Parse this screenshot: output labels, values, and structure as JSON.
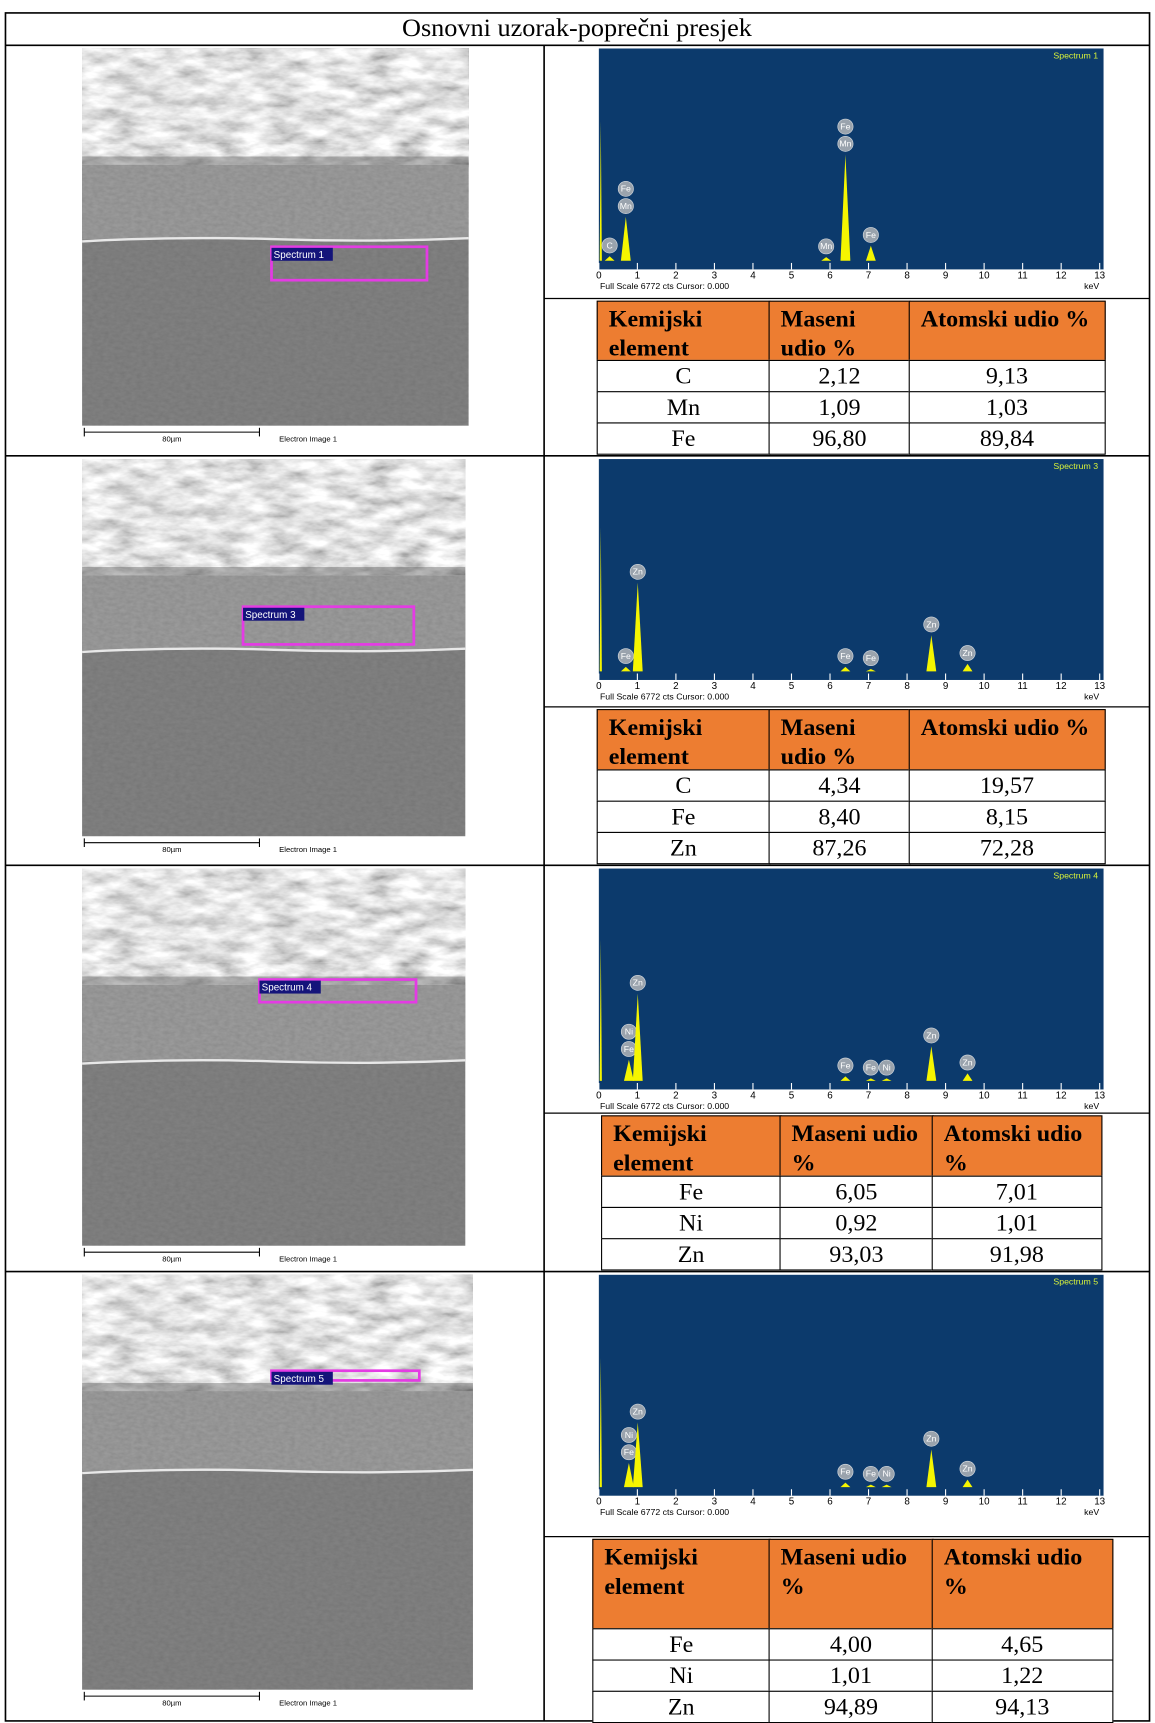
{
  "title": "Osnovni uzorak-poprečni presjek",
  "sections": [
    {
      "image": {
        "spectrum_label": "Spectrum 1",
        "scale_bar": "80µm",
        "caption": "Electron Image 1"
      },
      "spectrum": {
        "title": "Spectrum 1",
        "footer": "Full Scale 6772 cts Cursor: 0.000",
        "unit": "keV",
        "xlim": [
          0,
          13.1
        ],
        "xticks": [
          0,
          1,
          2,
          3,
          4,
          5,
          6,
          7,
          8,
          9,
          10,
          11,
          12,
          13
        ],
        "ylim": [
          0,
          6772
        ],
        "peaks": [
          {
            "kev": 0.05,
            "cts": 4650,
            "labels": []
          },
          {
            "kev": 0.28,
            "cts": 150,
            "labels": [
              "C"
            ]
          },
          {
            "kev": 0.7,
            "cts": 1460,
            "labels": [
              "Mn",
              "Fe"
            ]
          },
          {
            "kev": 5.9,
            "cts": 120,
            "labels": [
              "Mn"
            ]
          },
          {
            "kev": 6.4,
            "cts": 3530,
            "labels": [
              "Mn",
              "Fe"
            ]
          },
          {
            "kev": 7.06,
            "cts": 500,
            "labels": [
              "Fe"
            ]
          }
        ]
      },
      "table": {
        "header": [
          "Kemijski element",
          "Maseni udio %",
          "Atomski udio %"
        ],
        "rows": [
          [
            "C",
            "2,12",
            "9,13"
          ],
          [
            "Mn",
            "1,09",
            "1,03"
          ],
          [
            "Fe",
            "96,80",
            "89,84"
          ]
        ]
      }
    },
    {
      "image": {
        "spectrum_label": "Spectrum 3",
        "scale_bar": "80µm",
        "caption": "Electron Image 1"
      },
      "spectrum": {
        "title": "Spectrum 3",
        "footer": "Full Scale 6772 cts Cursor: 0.000",
        "unit": "keV",
        "xlim": [
          0,
          13.1
        ],
        "xticks": [
          0,
          1,
          2,
          3,
          4,
          5,
          6,
          7,
          8,
          9,
          10,
          11,
          12,
          13
        ],
        "ylim": [
          0,
          6772
        ],
        "peaks": [
          {
            "kev": 0.05,
            "cts": 4800,
            "labels": []
          },
          {
            "kev": 0.7,
            "cts": 150,
            "labels": [
              "Fe"
            ]
          },
          {
            "kev": 1.01,
            "cts": 2950,
            "labels": [
              "Zn"
            ]
          },
          {
            "kev": 6.4,
            "cts": 150,
            "labels": [
              "Fe"
            ]
          },
          {
            "kev": 7.06,
            "cts": 80,
            "labels": [
              "Fe"
            ]
          },
          {
            "kev": 8.63,
            "cts": 1200,
            "labels": [
              "Zn"
            ]
          },
          {
            "kev": 9.57,
            "cts": 250,
            "labels": [
              "Zn"
            ]
          }
        ]
      },
      "table": {
        "header": [
          "Kemijski element",
          "Maseni udio %",
          "Atomski udio %"
        ],
        "rows": [
          [
            "C",
            "4,34",
            "19,57"
          ],
          [
            "Fe",
            "8,40",
            "8,15"
          ],
          [
            "Zn",
            "87,26",
            "72,28"
          ]
        ]
      }
    },
    {
      "image": {
        "spectrum_label": "Spectrum 4",
        "scale_bar": "80µm",
        "caption": "Electron Image 1"
      },
      "spectrum": {
        "title": "Spectrum 4",
        "footer": "Full Scale 6772 cts Cursor: 0.000",
        "unit": "keV",
        "xlim": [
          0,
          13.1
        ],
        "xticks": [
          0,
          1,
          2,
          3,
          4,
          5,
          6,
          7,
          8,
          9,
          10,
          11,
          12,
          13
        ],
        "ylim": [
          0,
          6772
        ],
        "peaks": [
          {
            "kev": 0.05,
            "cts": 4700,
            "labels": []
          },
          {
            "kev": 0.78,
            "cts": 700,
            "labels": [
              "Fe",
              "Ni"
            ]
          },
          {
            "kev": 1.01,
            "cts": 2900,
            "labels": [
              "Zn"
            ]
          },
          {
            "kev": 6.4,
            "cts": 150,
            "labels": [
              "Fe"
            ]
          },
          {
            "kev": 7.06,
            "cts": 80,
            "labels": [
              "Fe"
            ]
          },
          {
            "kev": 7.47,
            "cts": 80,
            "labels": [
              "Ni"
            ]
          },
          {
            "kev": 8.63,
            "cts": 1150,
            "labels": [
              "Zn"
            ]
          },
          {
            "kev": 9.57,
            "cts": 250,
            "labels": [
              "Zn"
            ]
          }
        ]
      },
      "table": {
        "header": [
          "Kemijski element",
          "Maseni udio %",
          "Atomski udio %"
        ],
        "rows": [
          [
            "Fe",
            "6,05",
            "7,01"
          ],
          [
            "Ni",
            "0,92",
            "1,01"
          ],
          [
            "Zn",
            "93,03",
            "91,98"
          ]
        ]
      }
    },
    {
      "image": {
        "spectrum_label": "Spectrum 5",
        "scale_bar": "80µm",
        "caption": "Electron Image 1"
      },
      "spectrum": {
        "title": "Spectrum 5",
        "footer": "Full Scale 6772 cts Cursor: 0.000",
        "unit": "keV",
        "xlim": [
          0,
          13.1
        ],
        "xticks": [
          0,
          1,
          2,
          3,
          4,
          5,
          6,
          7,
          8,
          9,
          10,
          11,
          12,
          13
        ],
        "ylim": [
          0,
          6772
        ],
        "peaks": [
          {
            "kev": 0.05,
            "cts": 4300,
            "labels": []
          },
          {
            "kev": 0.78,
            "cts": 800,
            "labels": [
              "Fe",
              "Ni"
            ]
          },
          {
            "kev": 1.01,
            "cts": 2150,
            "labels": [
              "Zn"
            ]
          },
          {
            "kev": 6.4,
            "cts": 150,
            "labels": [
              "Fe"
            ]
          },
          {
            "kev": 7.06,
            "cts": 80,
            "labels": [
              "Fe"
            ]
          },
          {
            "kev": 7.47,
            "cts": 80,
            "labels": [
              "Ni"
            ]
          },
          {
            "kev": 8.63,
            "cts": 1250,
            "labels": [
              "Zn"
            ]
          },
          {
            "kev": 9.57,
            "cts": 250,
            "labels": [
              "Zn"
            ]
          }
        ]
      },
      "table": {
        "header": [
          "Kemijski element",
          "Maseni udio %",
          "Atomski udio %"
        ],
        "rows": [
          [
            "Fe",
            "4,00",
            "4,65"
          ],
          [
            "Ni",
            "1,01",
            "1,22"
          ],
          [
            "Zn",
            "94,89",
            "94,13"
          ]
        ]
      }
    }
  ]
}
